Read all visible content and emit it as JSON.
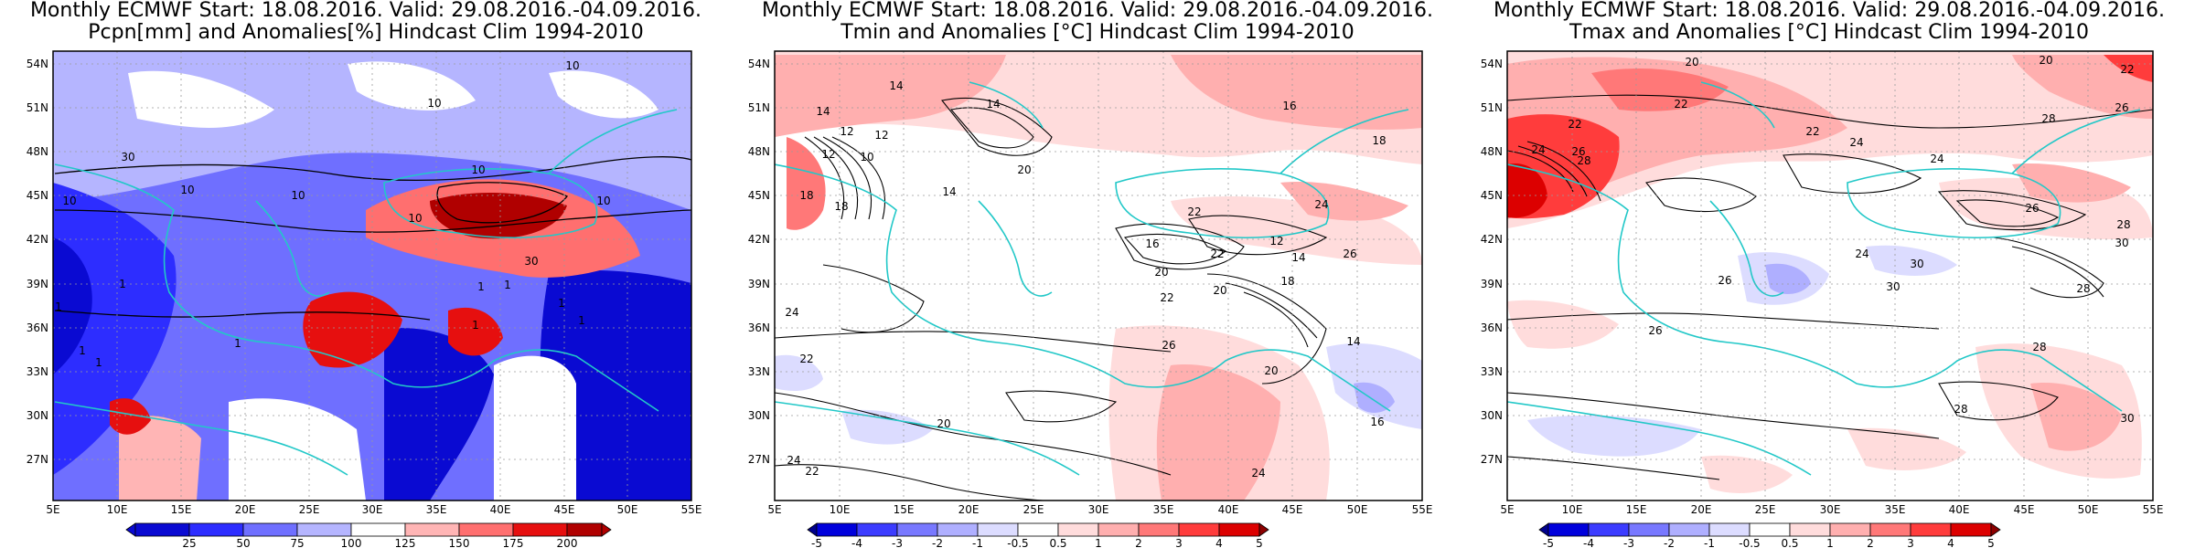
{
  "panels": [
    {
      "id": "pcpn",
      "title_line1": "Monthly ECMWF Start: 18.08.2016. Valid: 29.08.2016.-04.09.2016.",
      "title_line2": "Pcpn[mm] and Anomalies[%] Hindcast Clim 1994-2010",
      "colorbar_labels": [
        "25",
        "50",
        "75",
        "100",
        "125",
        "150",
        "175",
        "200"
      ],
      "contour_labels": [
        "10",
        "10",
        "30",
        "10",
        "10",
        "10",
        "10",
        "10",
        "10",
        "1",
        "1",
        "1",
        "30",
        "1",
        "1",
        "1",
        "1",
        "1",
        "1",
        "1"
      ]
    },
    {
      "id": "tmin",
      "title_line1": "Monthly ECMWF Start: 18.08.2016. Valid: 29.08.2016.-04.09.2016.",
      "title_line2": "Tmin and Anomalies [°C] Hindcast Clim 1994-2010",
      "colorbar_labels": [
        "-5",
        "-4",
        "-3",
        "-2",
        "-1",
        "-0.5",
        "0.5",
        "1",
        "2",
        "3",
        "4",
        "5"
      ],
      "contour_labels": [
        "14",
        "14",
        "14",
        "16",
        "18",
        "12",
        "12",
        "12",
        "10",
        "18",
        "18",
        "14",
        "20",
        "22",
        "22",
        "16",
        "20",
        "20",
        "22",
        "24",
        "26",
        "26",
        "24",
        "22",
        "20",
        "24",
        "22",
        "14",
        "16",
        "20",
        "24",
        "18",
        "12",
        "14"
      ]
    },
    {
      "id": "tmax",
      "title_line1": "Monthly ECMWF Start: 18.08.2016. Valid: 29.08.2016.-04.09.2016.",
      "title_line2": "Tmax and Anomalies [°C] Hindcast Clim 1994-2010",
      "colorbar_labels": [
        "-5",
        "-4",
        "-3",
        "-2",
        "-1",
        "-0.5",
        "0.5",
        "1",
        "2",
        "3",
        "4",
        "5"
      ],
      "contour_labels": [
        "20",
        "22",
        "22",
        "22",
        "24",
        "26",
        "28",
        "24",
        "22",
        "20",
        "24",
        "26",
        "28",
        "26",
        "28",
        "30",
        "30",
        "28",
        "24",
        "26",
        "30",
        "28",
        "26",
        "28",
        "30"
      ]
    }
  ],
  "lat_labels": [
    "54N",
    "51N",
    "48N",
    "45N",
    "42N",
    "39N",
    "36N",
    "33N",
    "30N",
    "27N"
  ],
  "lon_labels": [
    "5E",
    "10E",
    "15E",
    "20E",
    "25E",
    "30E",
    "35E",
    "40E",
    "45E",
    "50E",
    "55E"
  ],
  "map_extent": {
    "lon_min": 5,
    "lon_max": 55,
    "lat_min": 25,
    "lat_max": 55.5
  },
  "colors": {
    "precip_scale": [
      "#0a0ad2",
      "#2d2dff",
      "#6f6fff",
      "#b5b5ff",
      "#ffffff",
      "#ffb5b5",
      "#ff6f6f",
      "#e60f0f",
      "#b00000"
    ],
    "temp_scale": [
      "#00008c",
      "#0000dc",
      "#3c3cff",
      "#7878ff",
      "#afafff",
      "#dcdcff",
      "#ffffff",
      "#ffdcdc",
      "#ffafaf",
      "#ff7878",
      "#ff3c3c",
      "#dc0000",
      "#8c0000"
    ],
    "coastline": "#22c8c8",
    "contour": "#000000",
    "grid": "#9a9a9a"
  }
}
